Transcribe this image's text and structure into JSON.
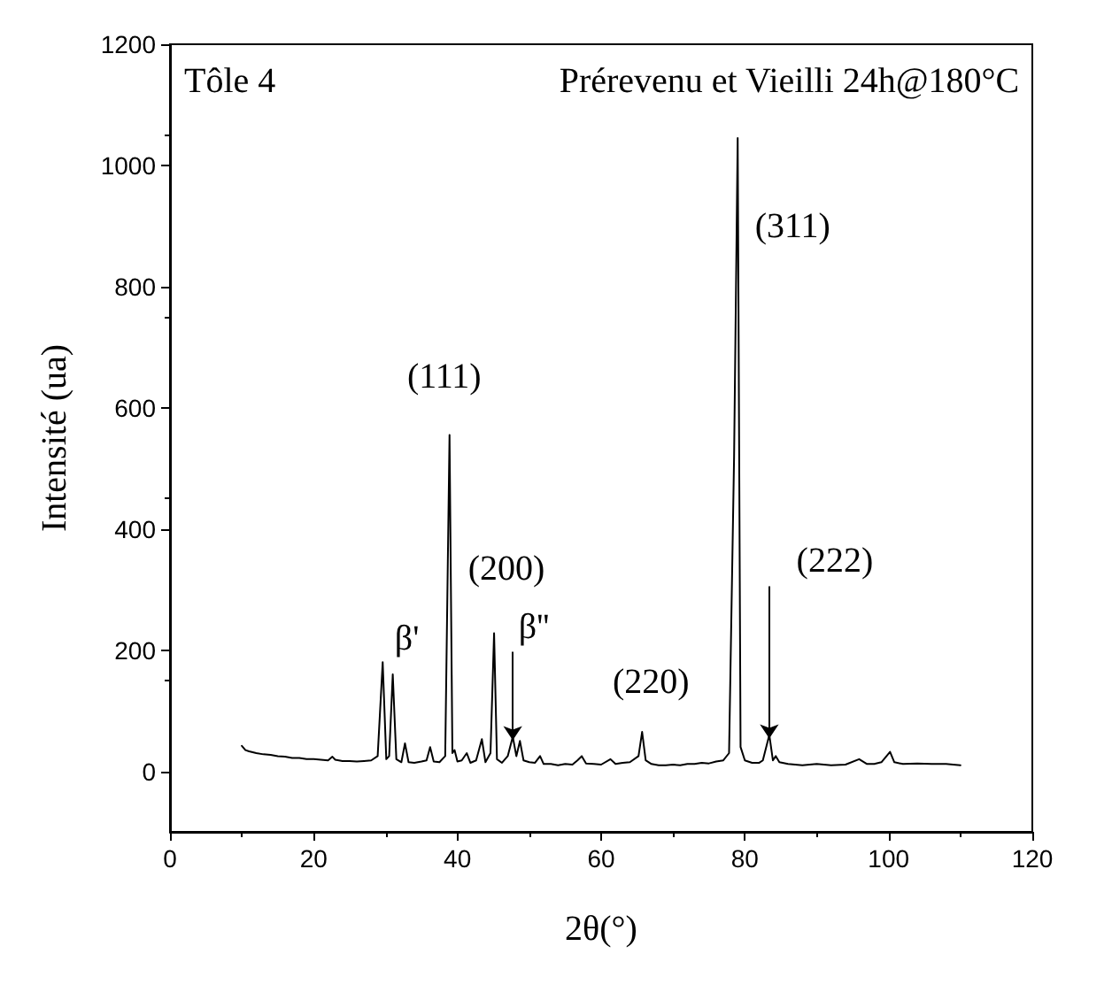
{
  "chart_data": {
    "type": "line",
    "title": "Prérevenu et Vieilli 24h@180°C",
    "subtitle": "Tôle 4",
    "xlabel": "2θ(°)",
    "ylabel": "Intensité (ua)",
    "x": [
      10,
      10.5,
      11,
      12,
      13,
      14,
      15,
      16,
      17,
      18,
      19,
      20,
      21,
      22,
      22.6,
      23,
      24,
      25,
      26,
      27,
      28,
      28.9,
      29.6,
      30.1,
      30.5,
      31.0,
      31.5,
      32.2,
      32.7,
      33.2,
      34,
      35,
      35.7,
      36.2,
      36.7,
      37.5,
      38.3,
      38.9,
      39.3,
      39.6,
      40.0,
      40.6,
      41.3,
      41.8,
      42.6,
      43.4,
      43.9,
      44.6,
      45.1,
      45.5,
      46.2,
      47.0,
      47.7,
      48.2,
      48.7,
      49.2,
      50,
      50.8,
      51.5,
      52,
      53,
      54,
      55,
      56,
      56.7,
      57.3,
      57.9,
      59,
      60,
      61.3,
      62,
      63,
      64,
      65.2,
      65.7,
      66.2,
      67,
      68,
      69,
      70,
      71,
      72,
      73,
      74,
      75,
      76,
      77,
      77.8,
      78.5,
      79.0,
      79.4,
      80,
      81,
      82,
      82.5,
      83.4,
      83.9,
      84.3,
      84.8,
      86,
      88,
      90,
      92,
      94,
      95.9,
      97,
      98,
      99,
      100.2,
      100.8,
      102,
      104,
      106,
      108,
      110
    ],
    "series": [
      {
        "color": "#000000",
        "values": [
          42,
          35,
          33,
          30,
          28,
          27,
          25,
          24,
          22,
          22,
          20,
          20,
          19,
          18,
          24,
          19,
          17,
          17,
          16,
          17,
          18,
          25,
          180,
          20,
          25,
          160,
          20,
          15,
          46,
          15,
          14,
          16,
          18,
          40,
          16,
          15,
          25,
          555,
          30,
          35,
          16,
          18,
          30,
          14,
          18,
          53,
          15,
          30,
          228,
          20,
          14,
          25,
          57,
          25,
          50,
          18,
          15,
          14,
          25,
          12,
          12,
          10,
          12,
          11,
          18,
          25,
          13,
          12,
          11,
          20,
          12,
          14,
          15,
          25,
          65,
          18,
          12,
          10,
          10,
          11,
          10,
          12,
          12,
          14,
          13,
          16,
          18,
          30,
          520,
          1045,
          40,
          18,
          14,
          14,
          18,
          60,
          18,
          25,
          15,
          12,
          10,
          12,
          10,
          11,
          20,
          12,
          12,
          15,
          32,
          15,
          12,
          13,
          12,
          12,
          10
        ]
      }
    ],
    "xlim": [
      0,
      120
    ],
    "xticks": [
      0,
      20,
      40,
      60,
      80,
      100,
      120
    ],
    "ylim": [
      -100,
      1200
    ],
    "yticks": [
      0,
      200,
      400,
      600,
      800,
      1000,
      1200
    ],
    "grid": false,
    "marker": "none",
    "line_style": "solid",
    "annotations": [
      {
        "text": "β'",
        "x": 31.0,
        "y": 160
      },
      {
        "text": "(111)",
        "x": 38.9,
        "y": 555
      },
      {
        "text": "(200)",
        "x": 45.1,
        "y": 228
      },
      {
        "text": "β''",
        "x": 47.7,
        "y": 57
      },
      {
        "text": "(220)",
        "x": 65.7,
        "y": 65
      },
      {
        "text": "(311)",
        "x": 79.0,
        "y": 1045
      },
      {
        "text": "(222)",
        "x": 83.4,
        "y": 60
      }
    ]
  }
}
